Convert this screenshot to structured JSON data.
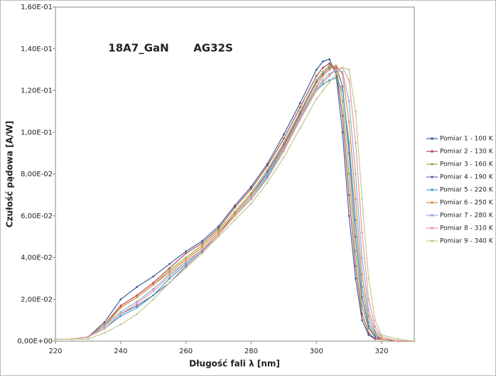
{
  "chart_data": {
    "type": "line",
    "annotations": [
      "18A7_GaN",
      "AG32S"
    ],
    "xlabel": "Długość fali  λ   [nm]",
    "ylabel": "Czułość pądowa   [A/W]",
    "xlim": [
      220,
      330
    ],
    "xticks": [
      220,
      240,
      260,
      280,
      300,
      320
    ],
    "ylim": [
      0,
      0.16
    ],
    "yticks": [
      {
        "value": 0,
        "label": "0,00E+00"
      },
      {
        "value": 0.02,
        "label": "2,00E-02"
      },
      {
        "value": 0.04,
        "label": "4,00E-02"
      },
      {
        "value": 0.06,
        "label": "6,00E-02"
      },
      {
        "value": 0.08,
        "label": "8,00E-02"
      },
      {
        "value": 0.1,
        "label": "1,00E-01"
      },
      {
        "value": 0.12,
        "label": "1,20E-01"
      },
      {
        "value": 0.14,
        "label": "1,40E-01"
      },
      {
        "value": 0.16,
        "label": "1,60E-01"
      }
    ],
    "x": [
      220,
      225,
      230,
      235,
      240,
      245,
      250,
      255,
      260,
      265,
      270,
      275,
      280,
      285,
      290,
      295,
      300,
      302,
      304,
      306,
      308,
      310,
      312,
      314,
      316,
      318,
      320,
      325,
      330
    ],
    "series": [
      {
        "name": "Pomiar 1 - 100 K",
        "color": "#3a5e9f",
        "values": [
          0.001,
          0.001,
          0.002,
          0.009,
          0.02,
          0.026,
          0.031,
          0.037,
          0.043,
          0.048,
          0.055,
          0.065,
          0.074,
          0.085,
          0.099,
          0.114,
          0.13,
          0.134,
          0.135,
          0.128,
          0.1,
          0.06,
          0.03,
          0.01,
          0.003,
          0.001,
          0.001,
          0,
          0
        ]
      },
      {
        "name": "Pomiar 2 - 130 K",
        "color": "#b5484e",
        "values": [
          0.001,
          0.001,
          0.002,
          0.008,
          0.017,
          0.022,
          0.028,
          0.035,
          0.042,
          0.047,
          0.054,
          0.064,
          0.073,
          0.084,
          0.097,
          0.112,
          0.127,
          0.131,
          0.133,
          0.13,
          0.108,
          0.07,
          0.036,
          0.013,
          0.004,
          0.001,
          0.001,
          0,
          0
        ]
      },
      {
        "name": "Pomiar 3 - 160 K",
        "color": "#8aaf4a",
        "values": [
          0.001,
          0.001,
          0.002,
          0.007,
          0.016,
          0.021,
          0.027,
          0.034,
          0.04,
          0.046,
          0.053,
          0.062,
          0.071,
          0.082,
          0.095,
          0.11,
          0.125,
          0.129,
          0.132,
          0.131,
          0.115,
          0.08,
          0.043,
          0.017,
          0.006,
          0.002,
          0.001,
          0,
          0
        ]
      },
      {
        "name": "Pomiar 4 - 190 K",
        "color": "#7a5fa0",
        "values": [
          0.001,
          0.001,
          0.002,
          0.006,
          0.013,
          0.017,
          0.022,
          0.028,
          0.036,
          0.043,
          0.051,
          0.061,
          0.07,
          0.081,
          0.094,
          0.109,
          0.124,
          0.128,
          0.131,
          0.132,
          0.122,
          0.09,
          0.05,
          0.021,
          0.007,
          0.002,
          0.001,
          0,
          0
        ]
      },
      {
        "name": "Pomiar 5 - 220 K",
        "color": "#3aa5c4",
        "values": [
          0.001,
          0.001,
          0.002,
          0.006,
          0.012,
          0.016,
          0.022,
          0.03,
          0.037,
          0.044,
          0.051,
          0.06,
          0.068,
          0.079,
          0.092,
          0.107,
          0.12,
          0.123,
          0.125,
          0.126,
          0.12,
          0.095,
          0.058,
          0.026,
          0.009,
          0.003,
          0.001,
          0,
          0
        ]
      },
      {
        "name": "Pomiar 6 - 250 K",
        "color": "#e8883a",
        "values": [
          0.001,
          0.001,
          0.002,
          0.008,
          0.016,
          0.021,
          0.027,
          0.033,
          0.039,
          0.045,
          0.052,
          0.061,
          0.07,
          0.08,
          0.093,
          0.108,
          0.122,
          0.127,
          0.13,
          0.132,
          0.128,
          0.105,
          0.068,
          0.032,
          0.012,
          0.004,
          0.001,
          0,
          0
        ]
      },
      {
        "name": "Pomiar 7 - 280 K",
        "color": "#8aaede",
        "values": [
          0.001,
          0.001,
          0.002,
          0.007,
          0.014,
          0.019,
          0.025,
          0.032,
          0.038,
          0.044,
          0.051,
          0.06,
          0.069,
          0.08,
          0.092,
          0.107,
          0.121,
          0.125,
          0.128,
          0.13,
          0.129,
          0.115,
          0.08,
          0.04,
          0.015,
          0.005,
          0.002,
          0,
          0
        ]
      },
      {
        "name": "Pomiar 8 - 310 K",
        "color": "#e89a9a",
        "values": [
          0.001,
          0.001,
          0.002,
          0.006,
          0.013,
          0.018,
          0.024,
          0.031,
          0.038,
          0.044,
          0.051,
          0.06,
          0.068,
          0.078,
          0.091,
          0.106,
          0.12,
          0.124,
          0.127,
          0.13,
          0.131,
          0.125,
          0.095,
          0.052,
          0.02,
          0.007,
          0.002,
          0,
          0
        ]
      },
      {
        "name": "Pomiar 9 - 340 K",
        "color": "#c4c890",
        "values": [
          0.001,
          0.001,
          0.001,
          0.004,
          0.008,
          0.013,
          0.02,
          0.028,
          0.035,
          0.042,
          0.05,
          0.058,
          0.066,
          0.076,
          0.088,
          0.102,
          0.116,
          0.12,
          0.124,
          0.128,
          0.131,
          0.13,
          0.11,
          0.068,
          0.03,
          0.01,
          0.003,
          0.001,
          0
        ]
      }
    ]
  }
}
